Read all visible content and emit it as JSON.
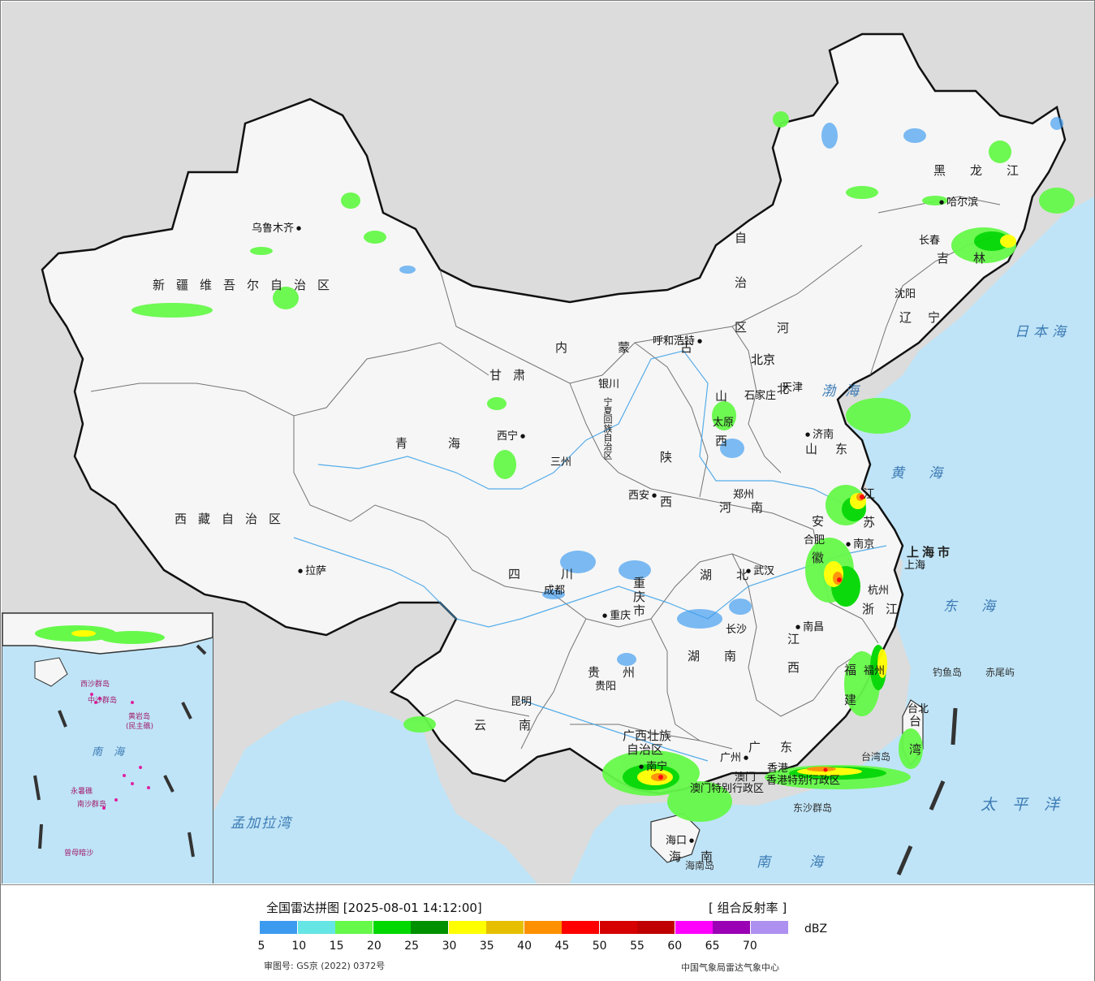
{
  "map": {
    "provinces": [
      {
        "id": "xinjiang",
        "text": "新疆维吾尔自治区"
      },
      {
        "id": "xizang",
        "text": "西藏自治区"
      },
      {
        "id": "qinghai",
        "text": "青海"
      },
      {
        "id": "gansu",
        "text": "甘肃"
      },
      {
        "id": "neimenggu",
        "text": "内蒙古"
      },
      {
        "id": "neimenggu2",
        "text": "自治区"
      },
      {
        "id": "heilongjiang",
        "text": "黑龙江"
      },
      {
        "id": "jilin",
        "text": "吉林"
      },
      {
        "id": "liaoning",
        "text": "辽宁"
      },
      {
        "id": "hebei",
        "text": "河北"
      },
      {
        "id": "shanxi",
        "text": "山西"
      },
      {
        "id": "shaanxi",
        "text": "陕西"
      },
      {
        "id": "henan",
        "text": "河南"
      },
      {
        "id": "shandong",
        "text": "山东"
      },
      {
        "id": "jiangsu",
        "text": "江苏"
      },
      {
        "id": "anhui",
        "text": "安徽"
      },
      {
        "id": "shanghai",
        "text": "上海市"
      },
      {
        "id": "zhejiang",
        "text": "浙江"
      },
      {
        "id": "jiangxi",
        "text": "江西"
      },
      {
        "id": "hubei",
        "text": "湖北"
      },
      {
        "id": "hunan",
        "text": "湖南"
      },
      {
        "id": "fujian",
        "text": "福建"
      },
      {
        "id": "guangdong",
        "text": "广东"
      },
      {
        "id": "guangxi",
        "text": "广西壮族"
      },
      {
        "id": "guangxi2",
        "text": "自治区"
      },
      {
        "id": "hainan",
        "text": "海南"
      },
      {
        "id": "guizhou",
        "text": "贵州"
      },
      {
        "id": "yunnan",
        "text": "云南"
      },
      {
        "id": "sichuan",
        "text": "四川"
      },
      {
        "id": "chongqing",
        "text": "重庆市"
      },
      {
        "id": "taiwan",
        "text": "台湾"
      },
      {
        "id": "ningxia",
        "text": "宁夏回族自治区"
      },
      {
        "id": "hk",
        "text": "香港特别行政区"
      },
      {
        "id": "macau",
        "text": "澳门特别行政区"
      }
    ],
    "cities": [
      {
        "id": "urumqi",
        "text": "乌鲁木齐"
      },
      {
        "id": "lhasa",
        "text": "拉萨"
      },
      {
        "id": "xining",
        "text": "西宁"
      },
      {
        "id": "lanzhou",
        "text": "三州"
      },
      {
        "id": "yinchuan",
        "text": "银川"
      },
      {
        "id": "huhehaote",
        "text": "呼和浩特"
      },
      {
        "id": "beijing",
        "text": "北京"
      },
      {
        "id": "tianjin",
        "text": "天津"
      },
      {
        "id": "shijiazhuang",
        "text": "石家庄"
      },
      {
        "id": "taiyuan",
        "text": "太原"
      },
      {
        "id": "jinan",
        "text": "济南"
      },
      {
        "id": "zhengzhou",
        "text": "郑州"
      },
      {
        "id": "xian",
        "text": "西安"
      },
      {
        "id": "hefei",
        "text": "合肥"
      },
      {
        "id": "nanjing",
        "text": "南京"
      },
      {
        "id": "shanghai_c",
        "text": "上海"
      },
      {
        "id": "hangzhou",
        "text": "杭州"
      },
      {
        "id": "wuhan",
        "text": "武汉"
      },
      {
        "id": "nanchang",
        "text": "南昌"
      },
      {
        "id": "changsha",
        "text": "长沙"
      },
      {
        "id": "fuzhou",
        "text": "福州"
      },
      {
        "id": "taibei",
        "text": "台北"
      },
      {
        "id": "guangzhou",
        "text": "广州"
      },
      {
        "id": "xianggang",
        "text": "香港"
      },
      {
        "id": "aomen",
        "text": "澳门"
      },
      {
        "id": "nanning",
        "text": "南宁"
      },
      {
        "id": "haikou",
        "text": "海口"
      },
      {
        "id": "guiyang",
        "text": "贵阳"
      },
      {
        "id": "kunming",
        "text": "昆明"
      },
      {
        "id": "chengdu",
        "text": "成都"
      },
      {
        "id": "chongqing_c",
        "text": "重庆"
      },
      {
        "id": "shenyang",
        "text": "沈阳"
      },
      {
        "id": "changchun",
        "text": "长春"
      },
      {
        "id": "haerbin",
        "text": "哈尔滨"
      }
    ],
    "seas": [
      {
        "id": "bohai",
        "text": "渤海"
      },
      {
        "id": "huanghai",
        "text": "黄海"
      },
      {
        "id": "donghai",
        "text": "东海"
      },
      {
        "id": "nanhai",
        "text": "南海"
      },
      {
        "id": "taipingyang",
        "text": "太平洋"
      },
      {
        "id": "ribenhai",
        "text": "日本海"
      },
      {
        "id": "mengjialawan",
        "text": "孟加拉湾"
      }
    ],
    "islands": [
      {
        "id": "diaoyudao",
        "text": "钓鱼岛"
      },
      {
        "id": "chiweiyu",
        "text": "赤尾屿"
      },
      {
        "id": "taiwandao",
        "text": "台湾岛"
      },
      {
        "id": "hainandao",
        "text": "海南岛"
      },
      {
        "id": "dongshaqundao",
        "text": "东沙群岛"
      }
    ],
    "inset": {
      "nanhai": "南海",
      "xisha": "西沙群岛",
      "zhongsha": "中沙群岛",
      "huangyan": "黄岩岛",
      "minzhu": "(民主礁)",
      "nansha": "南沙群岛",
      "yongshu": "永暑礁",
      "zengmu": "曾母暗沙"
    }
  },
  "legend": {
    "title": "全国雷达拼图 [2025-08-01 14:12:00]",
    "product": "[ 组合反射率 ]",
    "unit": "dBZ",
    "colors": [
      "#3d9bef",
      "#66e5e5",
      "#66f94a",
      "#00d800",
      "#009100",
      "#ffff00",
      "#e6c000",
      "#ff9000",
      "#ff0000",
      "#d60000",
      "#c00000",
      "#ff00ff",
      "#9a00b4",
      "#ad90f0"
    ],
    "ticks": [
      "5",
      "10",
      "15",
      "20",
      "25",
      "30",
      "35",
      "40",
      "45",
      "50",
      "55",
      "60",
      "65",
      "70"
    ],
    "approval": "审图号: GS京 (2022) 0372号",
    "agency": "中国气象局雷达气象中心"
  }
}
